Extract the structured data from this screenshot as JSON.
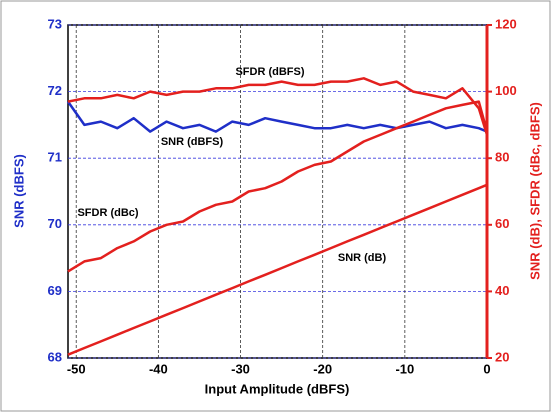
{
  "chart_data": {
    "type": "line",
    "x_label": "Input Amplitude  (dBFS)",
    "y_label": "SNR (dBFS)",
    "y2_label": "SNR (dB), SFDR (dBc, dBFS)",
    "x": [
      -51,
      -49,
      -47,
      -45,
      -43,
      -41,
      -39,
      -37,
      -35,
      -33,
      -31,
      -29,
      -27,
      -25,
      -23,
      -21,
      -19,
      -17,
      -15,
      -13,
      -11,
      -9,
      -7,
      -5,
      -3,
      -1,
      0
    ],
    "xlim": [
      -51,
      0
    ],
    "xticks": [
      -50,
      -40,
      -30,
      -20,
      -10,
      0
    ],
    "ylim": [
      68,
      73
    ],
    "yticks": [
      68,
      69,
      70,
      71,
      72,
      73
    ],
    "y2lim": [
      20,
      120
    ],
    "y2ticks": [
      20,
      40,
      60,
      80,
      100,
      120
    ],
    "grid": true,
    "left_color": "#1f2fc8",
    "right_color": "#e3201e",
    "series": [
      {
        "name": "SNR (dBFS)",
        "color": "#1f2fc8",
        "values": [
          71.85,
          71.5,
          71.55,
          71.45,
          71.6,
          71.4,
          71.55,
          71.45,
          71.5,
          71.4,
          71.55,
          71.5,
          71.6,
          71.55,
          71.5,
          71.45,
          71.45,
          71.5,
          71.45,
          71.5,
          71.45,
          71.5,
          71.55,
          71.45,
          71.5,
          71.45,
          71.4
        ]
      },
      {
        "name": "SFDR (dBFS)",
        "color": "#e3201e",
        "axis": "y2",
        "values": [
          97,
          98,
          98,
          99,
          98,
          100,
          99,
          100,
          100,
          101,
          101,
          102,
          102,
          103,
          102,
          102,
          103,
          103,
          104,
          102,
          103,
          100,
          99,
          98,
          101,
          95,
          87
        ]
      },
      {
        "name": "SFDR (dBc)",
        "color": "#e3201e",
        "axis": "y2",
        "values": [
          46,
          49,
          50,
          53,
          55,
          58,
          60,
          61,
          64,
          66,
          67,
          70,
          71,
          73,
          76,
          78,
          79,
          82,
          85,
          87,
          89,
          91,
          93,
          95,
          96,
          97,
          88
        ]
      },
      {
        "name": "SNR (dB)",
        "color": "#e3201e",
        "axis": "y2",
        "values": [
          21,
          23,
          25,
          27,
          29,
          31,
          33,
          35,
          37,
          39,
          41,
          43,
          45,
          47,
          49,
          51,
          53,
          55,
          57,
          59,
          61,
          63,
          65,
          67,
          69,
          71,
          72
        ]
      }
    ]
  }
}
